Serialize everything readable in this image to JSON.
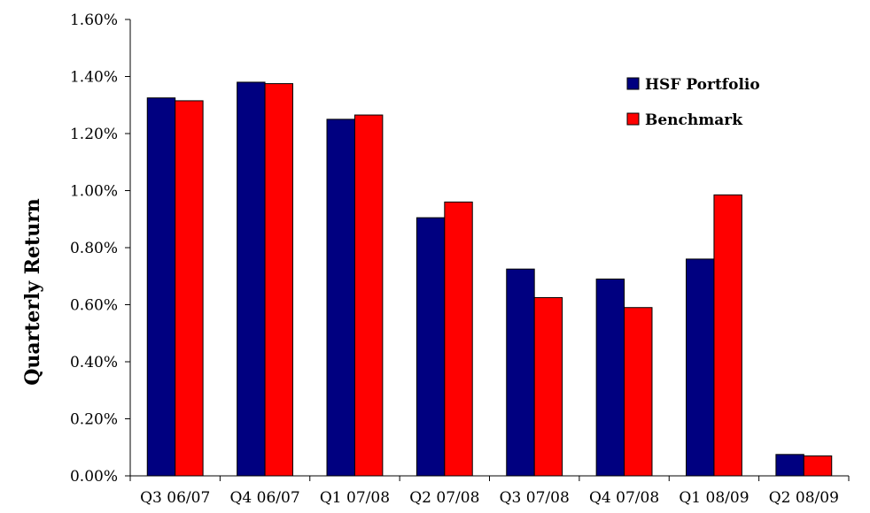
{
  "chart_data": {
    "type": "bar",
    "title": "",
    "xlabel": "",
    "ylabel": "Quarterly Return",
    "ylim": [
      0,
      1.6
    ],
    "y_tick_step": 0.2,
    "y_tick_format": "percent_2dp",
    "grid": false,
    "legend_position": "top-right",
    "categories": [
      "Q3 06/07",
      "Q4 06/07",
      "Q1 07/08",
      "Q2 07/08",
      "Q3 07/08",
      "Q4 07/08",
      "Q1 08/09",
      "Q2 08/09"
    ],
    "series": [
      {
        "name": "HSF Portfolio",
        "color": "#000080",
        "values": [
          1.325,
          1.38,
          1.25,
          0.905,
          0.725,
          0.69,
          0.76,
          0.075
        ]
      },
      {
        "name": "Benchmark",
        "color": "#ff0000",
        "values": [
          1.315,
          1.375,
          1.265,
          0.96,
          0.625,
          0.59,
          0.985,
          0.07
        ]
      }
    ]
  }
}
